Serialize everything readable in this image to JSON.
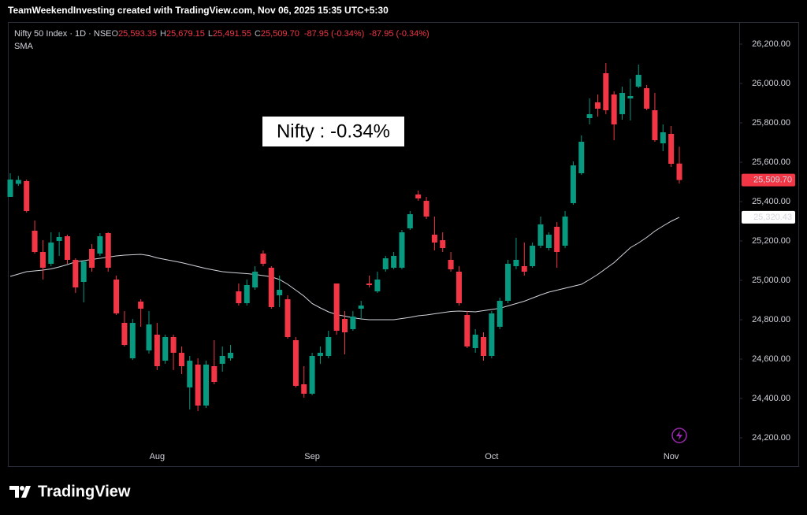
{
  "chart_data": {
    "type": "candlestick",
    "watermark": "TeamWeekendInvesting created with TradingView.com, Nov 06, 2025 15:35 UTC+5:30",
    "symbol": "Nifty 50 Index · 1D · NSE",
    "ohlc_header": [
      {
        "label": "O",
        "value": "25,593.35"
      },
      {
        "label": "H",
        "value": "25,679.15"
      },
      {
        "label": "L",
        "value": "25,491.55"
      },
      {
        "label": "C",
        "value": "25,509.70"
      }
    ],
    "change": [
      "-87.95 (-0.34%)",
      "-87.95 (-0.34%)"
    ],
    "indicator": "SMA",
    "annotation": "Nifty : -0.34%",
    "brand": "TradingView",
    "up_color": "#089981",
    "down_color": "#f23645",
    "categories": [
      null,
      null,
      null,
      null,
      null,
      null,
      null,
      null,
      null,
      null,
      null,
      null,
      null,
      null,
      null,
      null,
      null,
      null,
      "Aug",
      null,
      null,
      null,
      null,
      null,
      null,
      null,
      null,
      null,
      null,
      null,
      null,
      null,
      null,
      null,
      null,
      null,
      null,
      "Sep",
      null,
      null,
      null,
      null,
      null,
      null,
      null,
      null,
      null,
      null,
      null,
      null,
      null,
      null,
      null,
      null,
      null,
      null,
      null,
      null,
      null,
      "Oct",
      null,
      null,
      null,
      null,
      null,
      null,
      null,
      null,
      null,
      null,
      null,
      null,
      null,
      null,
      null,
      null,
      null,
      null,
      null,
      null,
      null,
      "Nov",
      null
    ],
    "open": [
      25424,
      25490,
      25504,
      25252,
      25144,
      25084,
      25200,
      25224,
      25104,
      24992,
      25160,
      25136,
      25240,
      25004,
      24784,
      24604,
      24892,
      24644,
      24724,
      24592,
      24712,
      24632,
      24456,
      24572,
      24364,
      24564,
      24576,
      24604,
      24944,
      24884,
      24964,
      25136,
      25064,
      24924,
      24904,
      24696,
      24472,
      24424,
      24616,
      24616,
      24984,
      24804,
      24752,
      24856,
      24984,
      24944,
      25056,
      25064,
      25064,
      25264,
      25436,
      25404,
      25232,
      25204,
      25104,
      25044,
      24824,
      24656,
      24712,
      24616,
      24764,
      24896,
      25072,
      25072,
      25072,
      25176,
      25164,
      25272,
      25176,
      25392,
      25544,
      25824,
      25904,
      26052,
      25944,
      25844,
      25924,
      25984,
      25976,
      25864,
      25696,
      25744,
      25593.35
    ],
    "high": [
      25544,
      25530,
      25512,
      25304,
      25204,
      25244,
      25244,
      25232,
      25112,
      25104,
      25184,
      25240,
      25244,
      25024,
      24844,
      24804,
      24904,
      24844,
      24784,
      24724,
      24724,
      24664,
      24616,
      24604,
      24592,
      24696,
      24664,
      24672,
      24984,
      25004,
      25072,
      25152,
      25072,
      25024,
      24924,
      24712,
      24564,
      24632,
      24664,
      24744,
      24984,
      24844,
      24844,
      24896,
      25024,
      25044,
      25124,
      25144,
      25256,
      25352,
      25456,
      25424,
      25324,
      25244,
      25144,
      25072,
      24844,
      24752,
      24736,
      24844,
      24912,
      25104,
      25216,
      25192,
      25192,
      25324,
      25244,
      25296,
      25352,
      25604,
      25736,
      25924,
      25944,
      26104,
      25960,
      25984,
      26024,
      26096,
      25992,
      25952,
      25792,
      25784,
      25679.15
    ],
    "low": [
      25424,
      25480,
      25344,
      25136,
      25004,
      25072,
      25124,
      25084,
      24936,
      24888,
      25044,
      25124,
      25044,
      24824,
      24664,
      24596,
      24764,
      24628,
      24544,
      24576,
      24544,
      24524,
      24344,
      24336,
      24352,
      24472,
      24536,
      24592,
      24872,
      24872,
      24952,
      25072,
      24856,
      24864,
      24704,
      24456,
      24404,
      24416,
      24576,
      24604,
      24724,
      24624,
      24744,
      24804,
      24964,
      24936,
      25044,
      25056,
      25056,
      25256,
      25404,
      25312,
      25152,
      25144,
      25044,
      24872,
      24656,
      24632,
      24592,
      24604,
      24752,
      24884,
      25056,
      25024,
      25064,
      25164,
      25152,
      25064,
      25164,
      25384,
      25536,
      25792,
      25832,
      25844,
      25712,
      25816,
      25812,
      25976,
      25864,
      25704,
      25656,
      25576,
      25491.55
    ],
    "close": [
      25512,
      25510,
      25352,
      25144,
      25064,
      25192,
      25220,
      25104,
      24964,
      25096,
      25064,
      25224,
      25064,
      24832,
      24672,
      24784,
      24856,
      24776,
      24564,
      24712,
      24632,
      24564,
      24592,
      24364,
      24572,
      24484,
      24616,
      24632,
      24884,
      24976,
      25044,
      25084,
      24864,
      24952,
      24712,
      24464,
      24424,
      24616,
      24632,
      24712,
      24744,
      24736,
      24816,
      24872,
      24976,
      25004,
      25112,
      25124,
      25244,
      25336,
      25416,
      25324,
      25192,
      25164,
      25056,
      24884,
      24664,
      24724,
      24616,
      24832,
      24896,
      25084,
      25104,
      25044,
      25176,
      25284,
      25232,
      25144,
      25324,
      25584,
      25704,
      25844,
      25872,
      25864,
      25792,
      25952,
      25936,
      26044,
      25872,
      25712,
      25752,
      25592,
      25509.7
    ],
    "last_price_label": "25,509.70",
    "sma": {
      "color": "#d1d4dc",
      "label": "25,320.43",
      "values": [
        25020,
        25032,
        25044,
        25048,
        25052,
        25058,
        25068,
        25080,
        25094,
        25100,
        25106,
        25112,
        25118,
        25124,
        25128,
        25130,
        25132,
        25126,
        25114,
        25106,
        25098,
        25090,
        25080,
        25070,
        25060,
        25052,
        25044,
        25040,
        25037,
        25034,
        25030,
        25024,
        25018,
        25004,
        24980,
        24950,
        24920,
        24882,
        24860,
        24840,
        24826,
        24818,
        24810,
        24804,
        24800,
        24800,
        24800,
        24800,
        24806,
        24812,
        24820,
        24824,
        24830,
        24836,
        24842,
        24844,
        24842,
        24840,
        24846,
        24852,
        24858,
        24870,
        24882,
        24894,
        24910,
        24926,
        24940,
        24950,
        24960,
        24970,
        24980,
        25004,
        25030,
        25060,
        25090,
        25128,
        25166,
        25190,
        25218,
        25250,
        25276,
        25300,
        25320.43
      ]
    },
    "ylim": [
      24064,
      26312
    ],
    "yticks": [
      {
        "value": 24200,
        "label": "24,200.00"
      },
      {
        "value": 24400,
        "label": "24,400.00"
      },
      {
        "value": 24600,
        "label": "24,600.00"
      },
      {
        "value": 24800,
        "label": "24,800.00"
      },
      {
        "value": 25000,
        "label": "25,000.00"
      },
      {
        "value": 25200,
        "label": "25,200.00"
      },
      {
        "value": 25400,
        "label": "25,400.00"
      },
      {
        "value": 25600,
        "label": "25,600.00"
      },
      {
        "value": 25800,
        "label": "25,800.00"
      },
      {
        "value": 26000,
        "label": "26,000.00"
      },
      {
        "value": 26200,
        "label": "26,200.00"
      }
    ]
  }
}
